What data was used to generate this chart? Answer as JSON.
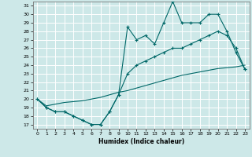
{
  "xlabel": "Humidex (Indice chaleur)",
  "background_color": "#cde8e8",
  "grid_color": "#ffffff",
  "line_color": "#006868",
  "xlim": [
    -0.5,
    23.5
  ],
  "ylim": [
    16.5,
    31.5
  ],
  "xticks": [
    0,
    1,
    2,
    3,
    4,
    5,
    6,
    7,
    8,
    9,
    10,
    11,
    12,
    13,
    14,
    15,
    16,
    17,
    18,
    19,
    20,
    21,
    22,
    23
  ],
  "yticks": [
    17,
    18,
    19,
    20,
    21,
    22,
    23,
    24,
    25,
    26,
    27,
    28,
    29,
    30,
    31
  ],
  "line1_x": [
    0,
    1,
    2,
    3,
    4,
    5,
    6,
    7,
    8,
    9,
    10,
    11,
    12,
    13,
    14,
    15,
    16,
    17,
    18,
    19,
    20,
    21,
    22,
    23
  ],
  "line1_y": [
    20,
    19,
    18.5,
    18.5,
    18,
    17.5,
    17,
    17,
    18.5,
    20.5,
    28.5,
    27,
    27.5,
    26.5,
    29,
    31.5,
    29,
    29,
    29,
    30,
    30,
    28,
    25.5,
    23.5
  ],
  "line2_x": [
    0,
    1,
    2,
    3,
    4,
    5,
    6,
    7,
    8,
    9,
    10,
    11,
    12,
    13,
    14,
    15,
    16,
    17,
    18,
    19,
    20,
    21,
    22,
    23
  ],
  "line2_y": [
    20,
    19,
    18.5,
    18.5,
    18,
    17.5,
    17,
    17,
    18.5,
    20.5,
    23,
    24,
    24.5,
    25,
    25.5,
    26,
    26,
    26.5,
    27,
    27.5,
    28,
    27.5,
    26,
    23.5
  ],
  "line3_x": [
    0,
    1,
    2,
    3,
    4,
    5,
    6,
    7,
    8,
    9,
    10,
    11,
    12,
    13,
    14,
    15,
    16,
    17,
    18,
    19,
    20,
    21,
    22,
    23
  ],
  "line3_y": [
    20,
    19.2,
    19.4,
    19.6,
    19.7,
    19.8,
    20,
    20.2,
    20.5,
    20.8,
    21.0,
    21.3,
    21.6,
    21.9,
    22.2,
    22.5,
    22.8,
    23,
    23.2,
    23.4,
    23.6,
    23.7,
    23.8,
    24
  ]
}
